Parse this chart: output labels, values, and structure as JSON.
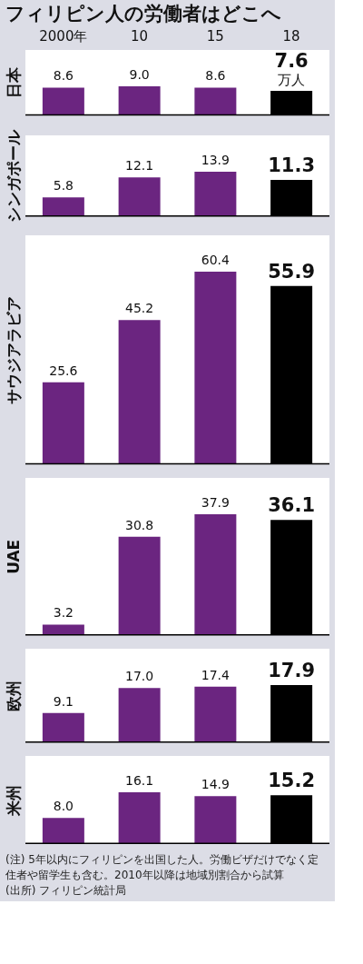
{
  "chart_data": [
    {
      "type": "bar",
      "title": "フィリピン人の労働者はどこへ",
      "ylabel": "日本",
      "categories": [
        "2000年",
        "10",
        "15",
        "18"
      ],
      "values": [
        8.6,
        9.0,
        8.6,
        7.6
      ],
      "value_labels": [
        "8.6",
        "9.0",
        "8.6",
        "7.6"
      ],
      "colors": [
        "#6b2580",
        "#6b2580",
        "#6b2580",
        "#000000"
      ],
      "data_labels": true,
      "tick_labels": "x",
      "annotations": [
        {
          "text": "万人",
          "x": "18",
          "y": 7.6
        }
      ]
    },
    {
      "type": "bar",
      "ylabel": "シンガポール",
      "values": [
        5.8,
        12.1,
        13.9,
        11.3
      ],
      "colors": [
        "#6b2580",
        "#6b2580",
        "#6b2580",
        "#000000"
      ],
      "data_labels": true,
      "tick_labels": false
    },
    {
      "type": "bar",
      "ylabel": "サウジアラビア",
      "values": [
        25.6,
        45.2,
        60.4,
        55.9
      ],
      "colors": [
        "#6b2580",
        "#6b2580",
        "#6b2580",
        "#000000"
      ],
      "data_labels": true,
      "tick_labels": false
    },
    {
      "type": "bar",
      "ylabel": "UAE",
      "values": [
        3.2,
        30.8,
        37.9,
        36.1
      ],
      "colors": [
        "#6b2580",
        "#6b2580",
        "#6b2580",
        "#000000"
      ],
      "data_labels": true,
      "tick_labels": false
    },
    {
      "type": "bar",
      "ylabel": "欧州",
      "values": [
        9.1,
        17.0,
        17.4,
        17.9
      ],
      "value_labels": [
        "9.1",
        "17.0",
        "17.4",
        "17.9"
      ],
      "colors": [
        "#6b2580",
        "#6b2580",
        "#6b2580",
        "#000000"
      ],
      "data_labels": true,
      "tick_labels": false
    },
    {
      "type": "bar",
      "ylabel": "米州",
      "values": [
        8.0,
        16.1,
        14.9,
        15.2
      ],
      "value_labels": [
        "8.0",
        "16.1",
        "14.9",
        "15.2"
      ],
      "colors": [
        "#6b2580",
        "#6b2580",
        "#6b2580",
        "#000000"
      ],
      "data_labels": true,
      "tick_labels": false,
      "annotations": [
        "(注) 5年以内にフィリピンを出国した人。労働ビザだけでなく定住者や留学生も含む。2010年以降は地域別割合から試算",
        "(出所) フィリピン統計局"
      ]
    }
  ]
}
